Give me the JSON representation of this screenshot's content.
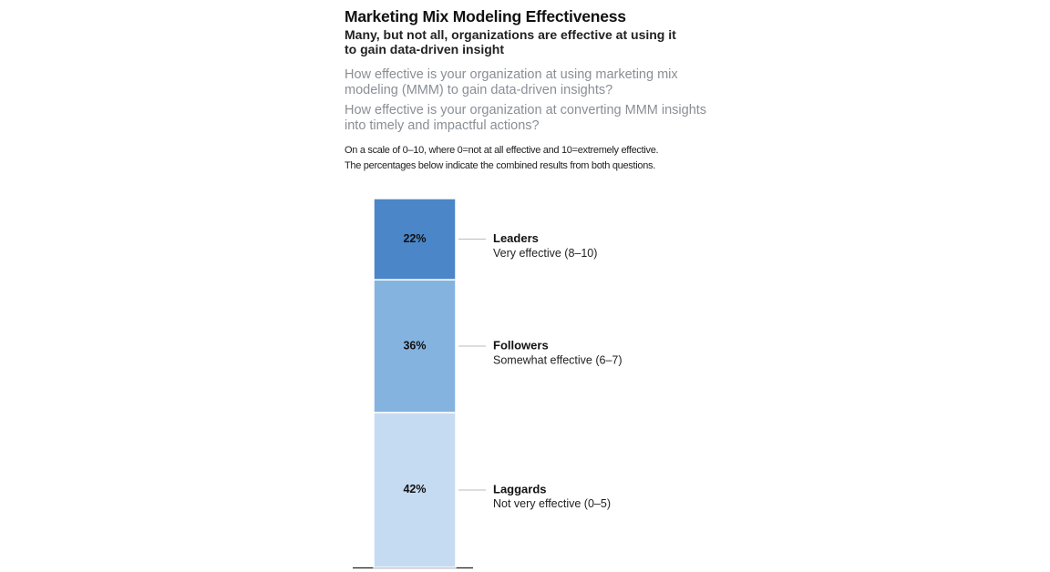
{
  "chart_data": {
    "type": "stacked_bar",
    "title": "Marketing Mix Modeling Effectiveness",
    "subtitle": "Many, but not all, organizations are effective at using it to gain data-driven insight",
    "questions": [
      "How effective is your organization at using marketing mix modeling (MMM) to gain data-driven insights?",
      "How effective is your organization at converting MMM insights into timely and impactful actions?"
    ],
    "notes": [
      "On a scale of 0–10, where 0=not at all effective and 10=extremely effective.",
      "The percentages below indicate the combined results from both questions."
    ],
    "ylim": [
      0,
      100
    ],
    "series": [
      {
        "name": "Laggards",
        "description": "Not very effective (0–5)",
        "color": "#c5dbf2",
        "values": [
          42
        ],
        "value_labels": [
          "42%"
        ]
      },
      {
        "name": "Followers",
        "description": "Somewhat effective (6–7)",
        "color": "#85b3e0",
        "values": [
          36
        ],
        "value_labels": [
          "36%"
        ]
      },
      {
        "name": "Leaders",
        "description": "Very effective (8–10)",
        "color": "#4a86c8",
        "values": [
          22
        ],
        "value_labels": [
          "22%"
        ]
      }
    ]
  }
}
